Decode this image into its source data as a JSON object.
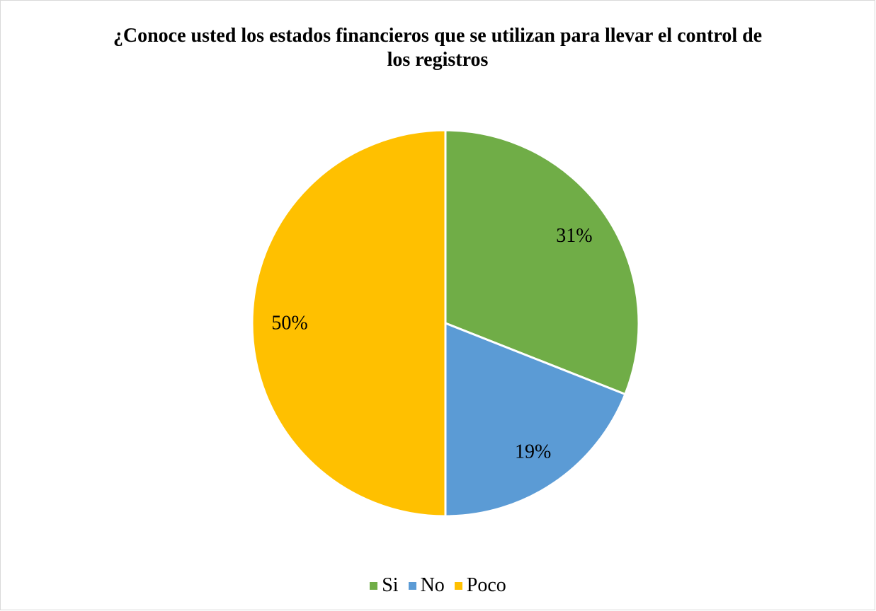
{
  "chart_data": {
    "type": "pie",
    "title": "¿Conoce usted los estados financieros que se utilizan para llevar el control de los registros",
    "categories": [
      "Si",
      "No",
      "Poco"
    ],
    "values": [
      31,
      19,
      50
    ],
    "data_labels": [
      "31%",
      "19%",
      "50%"
    ],
    "colors": [
      "#70AD47",
      "#5B9BD5",
      "#FFC000"
    ],
    "legend_position": "bottom",
    "start_angle": "12 o'clock",
    "direction": "clockwise"
  }
}
